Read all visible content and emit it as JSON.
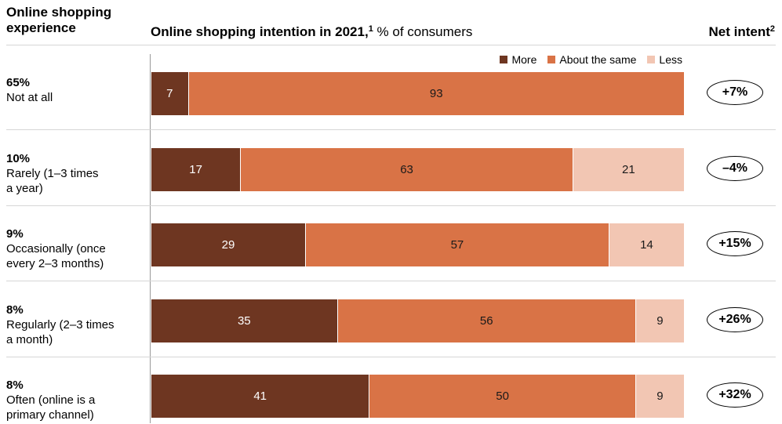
{
  "header": {
    "left_title_line1": "Online shopping",
    "left_title_line2": "experience",
    "mid_title_bold": "Online shopping intention in 2021,",
    "mid_title_sup": "1",
    "mid_title_rest": " % of consumers",
    "right_title": "Net intent",
    "right_title_sup": "2"
  },
  "legend": {
    "more": "More",
    "same": "About the same",
    "less": "Less"
  },
  "colors": {
    "more": "#6e3621",
    "same": "#d97346",
    "less": "#f2c6b3"
  },
  "chart_data": {
    "type": "bar",
    "orientation": "horizontal",
    "stacked": true,
    "title": "Online shopping intention in 2021, % of consumers",
    "categories": [
      {
        "share": "65%",
        "label": "Not at all"
      },
      {
        "share": "10%",
        "label": "Rarely (1–3 times a year)"
      },
      {
        "share": "9%",
        "label": "Occasionally (once every 2–3 months)"
      },
      {
        "share": "8%",
        "label": "Regularly (2–3 times a month)"
      },
      {
        "share": "8%",
        "label": "Often (online is a primary channel)"
      }
    ],
    "series": [
      {
        "name": "More",
        "values": [
          7,
          17,
          29,
          35,
          41
        ]
      },
      {
        "name": "About the same",
        "values": [
          93,
          63,
          57,
          56,
          50
        ]
      },
      {
        "name": "Less",
        "values": [
          null,
          21,
          14,
          9,
          9
        ]
      }
    ],
    "net_intent": [
      "+7%",
      "–4%",
      "+15%",
      "+26%",
      "+32%"
    ],
    "legend_position": "top-right"
  },
  "rows": [
    {
      "pct": "65%",
      "label": "Not at all",
      "more": 7,
      "same": 93,
      "less": null,
      "net": "+7%"
    },
    {
      "pct": "10%",
      "label": "Rarely (1–3 times a year)",
      "more": 17,
      "same": 63,
      "less": 21,
      "net": "–4%"
    },
    {
      "pct": "9%",
      "label": "Occasionally (once every 2–3 months)",
      "more": 29,
      "same": 57,
      "less": 14,
      "net": "+15%"
    },
    {
      "pct": "8%",
      "label": "Regularly (2–3 times a month)",
      "more": 35,
      "same": 56,
      "less": 9,
      "net": "+26%"
    },
    {
      "pct": "8%",
      "label": "Often (online is a primary channel)",
      "more": 41,
      "same": 50,
      "less": 9,
      "net": "+32%"
    }
  ]
}
